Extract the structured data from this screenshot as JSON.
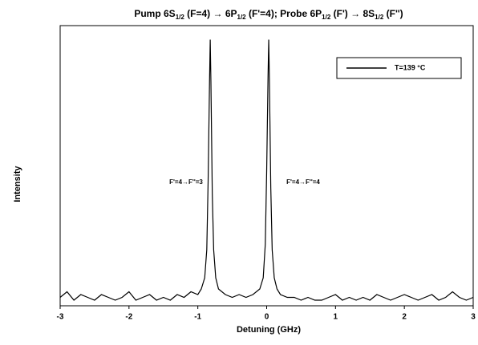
{
  "chart_data": {
    "type": "line",
    "title": [
      {
        "text": "Pump 6S",
        "sub": false
      },
      {
        "text": "1/2",
        "sub": true
      },
      {
        "text": " (F=4) → 6P",
        "sub": false
      },
      {
        "text": "1/2",
        "sub": true
      },
      {
        "text": " (F'=4);  Probe 6P",
        "sub": false
      },
      {
        "text": "1/2",
        "sub": true
      },
      {
        "text": " (F') → 8S",
        "sub": false
      },
      {
        "text": "1/2",
        "sub": true
      },
      {
        "text": " (F'')",
        "sub": false
      }
    ],
    "x_label": "Detuning (GHz)",
    "y_label": "Intensity",
    "xlim": [
      -3,
      3
    ],
    "xticks": [
      -3,
      -2,
      -1,
      0,
      1,
      2,
      3
    ],
    "ylim": [
      0,
      100
    ],
    "grid": false,
    "legend": "upper right",
    "annotations": [
      "F'=4→F''=3",
      "F'=4→F''=4"
    ],
    "x": [
      -3,
      -2.9,
      -2.8,
      -2.7,
      -2.6,
      -2.5,
      -2.4,
      -2.3,
      -2.2,
      -2.1,
      -2,
      -1.9,
      -1.8,
      -1.7,
      -1.6,
      -1.5,
      -1.4,
      -1.3,
      -1.2,
      -1.1,
      -1.0,
      -0.95,
      -0.9,
      -0.87,
      -0.85,
      -0.83,
      -0.82,
      -0.81,
      -0.79,
      -0.77,
      -0.74,
      -0.7,
      -0.6,
      -0.5,
      -0.4,
      -0.3,
      -0.2,
      -0.1,
      -0.05,
      -0.02,
      0,
      0.02,
      0.03,
      0.04,
      0.06,
      0.08,
      0.11,
      0.15,
      0.2,
      0.3,
      0.4,
      0.5,
      0.6,
      0.7,
      0.8,
      0.9,
      1.0,
      1.1,
      1.2,
      1.3,
      1.4,
      1.5,
      1.6,
      1.7,
      1.8,
      1.9,
      2.0,
      2.1,
      2.2,
      2.3,
      2.4,
      2.5,
      2.6,
      2.7,
      2.8,
      2.9,
      3.0
    ],
    "series": [
      {
        "name": "T=139 °C",
        "color": "#000000",
        "values": [
          3,
          5,
          2,
          4,
          3,
          2,
          4,
          3,
          2,
          3,
          5,
          2,
          3,
          4,
          2,
          3,
          2,
          4,
          3,
          5,
          4,
          6,
          10,
          20,
          45,
          80,
          95,
          80,
          40,
          20,
          10,
          6,
          4,
          3,
          4,
          3,
          4,
          6,
          10,
          22,
          48,
          82,
          95,
          80,
          42,
          20,
          10,
          6,
          4,
          3,
          3,
          2,
          3,
          2,
          2,
          3,
          4,
          2,
          3,
          2,
          3,
          2,
          4,
          3,
          2,
          3,
          4,
          3,
          2,
          3,
          4,
          2,
          3,
          5,
          3,
          2,
          3
        ]
      }
    ]
  }
}
